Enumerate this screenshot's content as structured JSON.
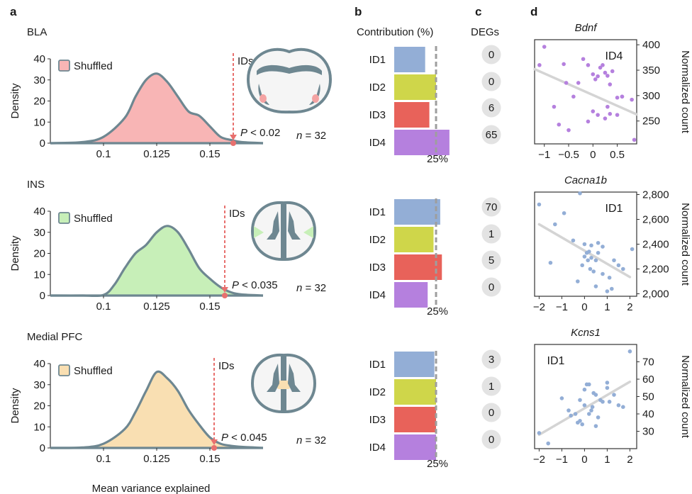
{
  "panel_letters": [
    "a",
    "b",
    "c",
    "d"
  ],
  "headers": {
    "b": "Contribution (%)",
    "c": "DEGs"
  },
  "xlabel_a": "Mean variance explained",
  "colors": {
    "outline": "#6e8791",
    "arrow": "#e8706e",
    "fills": [
      "#f8b5b5",
      "#c7efb8",
      "#f9dfb2"
    ],
    "ids": {
      "ID1": "#93aed6",
      "ID2": "#cfd64a",
      "ID3": "#e8625a",
      "ID4": "#b580de"
    },
    "scatter_line": "#d4d4d4",
    "deg_circle": "#e3e3e3"
  },
  "chart_data": [
    {
      "type": "area",
      "panel": "a",
      "region": "BLA",
      "ylabel": "Density",
      "legend": "Shuffled",
      "ylim": [
        0,
        40
      ],
      "yticks": [
        0,
        10,
        20,
        30,
        40
      ],
      "xlim": [
        0.075,
        0.175
      ],
      "xticks": [
        0.1,
        0.125,
        0.15
      ],
      "x": [
        0.075,
        0.09,
        0.1,
        0.11,
        0.115,
        0.12,
        0.125,
        0.13,
        0.135,
        0.14,
        0.145,
        0.15,
        0.155,
        0.16,
        0.165,
        0.175
      ],
      "y": [
        0,
        0.5,
        3,
        12,
        22,
        30,
        33,
        29,
        22,
        15,
        13,
        8,
        3,
        1.5,
        0.5,
        0
      ],
      "ids_value": 0.161,
      "ids_label": "IDs",
      "p_label": "P",
      "p_text": "< 0.02",
      "n_label": "n",
      "n_text": "= 32"
    },
    {
      "type": "area",
      "panel": "a",
      "region": "INS",
      "ylabel": "Density",
      "legend": "Shuffled",
      "ylim": [
        0,
        40
      ],
      "yticks": [
        0,
        10,
        20,
        30,
        40
      ],
      "xlim": [
        0.075,
        0.175
      ],
      "xticks": [
        0.1,
        0.125,
        0.15
      ],
      "x": [
        0.075,
        0.09,
        0.1,
        0.105,
        0.11,
        0.115,
        0.12,
        0.125,
        0.13,
        0.135,
        0.14,
        0.145,
        0.15,
        0.155,
        0.16,
        0.165,
        0.175
      ],
      "y": [
        0,
        0,
        0.3,
        5,
        13,
        20,
        24,
        30,
        33,
        30,
        22,
        13,
        8,
        4,
        1.5,
        0.5,
        0
      ],
      "ids_value": 0.157,
      "ids_label": "IDs",
      "p_label": "P",
      "p_text": "< 0.035",
      "n_label": "n",
      "n_text": "= 32"
    },
    {
      "type": "area",
      "panel": "a",
      "region": "Medial PFC",
      "ylabel": "Density",
      "legend": "Shuffled",
      "ylim": [
        0,
        40
      ],
      "yticks": [
        0,
        10,
        20,
        30,
        40
      ],
      "xlim": [
        0.075,
        0.175
      ],
      "xticks": [
        0.1,
        0.125,
        0.15
      ],
      "x": [
        0.075,
        0.09,
        0.1,
        0.11,
        0.115,
        0.12,
        0.125,
        0.13,
        0.135,
        0.14,
        0.145,
        0.15,
        0.155,
        0.16,
        0.165,
        0.175
      ],
      "y": [
        0,
        0.2,
        2,
        9,
        17,
        27,
        36,
        33,
        27,
        18,
        11,
        5,
        2,
        1,
        0.5,
        0
      ],
      "ids_value": 0.152,
      "ids_label": "IDs",
      "p_label": "P",
      "p_text": "< 0.045",
      "n_label": "n",
      "n_text": "= 32"
    },
    {
      "type": "bar",
      "panel": "b",
      "region": "BLA",
      "categories": [
        "ID1",
        "ID2",
        "ID3",
        "ID4"
      ],
      "values": [
        18.5,
        25,
        21,
        33
      ],
      "reference": 25,
      "reference_label": "25%"
    },
    {
      "type": "bar",
      "panel": "b",
      "region": "INS",
      "categories": [
        "ID1",
        "ID2",
        "ID3",
        "ID4"
      ],
      "values": [
        27.5,
        23.5,
        28.5,
        20
      ],
      "reference": 25,
      "reference_label": "25%"
    },
    {
      "type": "bar",
      "panel": "b",
      "region": "Medial PFC",
      "categories": [
        "ID1",
        "ID2",
        "ID3",
        "ID4"
      ],
      "values": [
        24,
        25,
        25,
        25
      ],
      "reference": 25,
      "reference_label": "25%"
    },
    {
      "type": "table",
      "panel": "c",
      "columns": [
        "BLA",
        "INS",
        "Medial PFC"
      ],
      "rows": [
        "ID1",
        "ID2",
        "ID3",
        "ID4"
      ],
      "values": [
        [
          "0",
          "0",
          "6",
          "65"
        ],
        [
          "70",
          "1",
          "5",
          "0"
        ],
        [
          "3",
          "1",
          "0",
          "0"
        ]
      ]
    },
    {
      "type": "scatter",
      "panel": "d",
      "title": "Bdnf",
      "label": "ID4",
      "ylabel": "Normalized count",
      "xlim": [
        -1.2,
        0.9
      ],
      "xticks": [
        -1,
        -0.5,
        0,
        0.5
      ],
      "xticklabels": [
        "−1",
        "−0.5",
        "0",
        "0.5"
      ],
      "ylim": [
        205,
        410
      ],
      "yticks": [
        250,
        300,
        350,
        400
      ],
      "yticklabels": [
        "250",
        "300",
        "350",
        "400"
      ],
      "fit": [
        [
          -1.2,
          352
        ],
        [
          0.9,
          263
        ]
      ],
      "x": [
        -1.0,
        -1.1,
        -0.8,
        -0.6,
        -0.55,
        -0.3,
        -0.2,
        -0.1,
        0.0,
        0.05,
        0.1,
        0.15,
        0.2,
        0.25,
        0.3,
        0.35,
        0.4,
        -0.4,
        -0.5,
        -0.7,
        0.5,
        0.6,
        0.8,
        0.85,
        -0.1,
        0.0,
        0.1,
        0.25,
        0.3,
        0.35,
        0.5,
        0.6
      ],
      "y": [
        396,
        360,
        278,
        362,
        325,
        325,
        372,
        360,
        342,
        332,
        338,
        355,
        360,
        345,
        339,
        322,
        348,
        298,
        232,
        243,
        296,
        298,
        292,
        213,
        249,
        269,
        262,
        255,
        278,
        264,
        262,
        298
      ]
    },
    {
      "type": "scatter",
      "panel": "d",
      "title": "Cacna1b",
      "label": "ID1",
      "ylabel": "Normalized count",
      "xlim": [
        -2.2,
        2.3
      ],
      "xticks": [
        -2,
        -1,
        0,
        1,
        2
      ],
      "xticklabels": [
        "−2",
        "−1",
        "0",
        "1",
        "2"
      ],
      "ylim": [
        1980,
        2820
      ],
      "yticks": [
        2000,
        2200,
        2400,
        2600,
        2800
      ],
      "yticklabels": [
        "2,000",
        "2,200",
        "2,400",
        "2,600",
        "2,800"
      ],
      "fit": [
        [
          -2.0,
          2560
        ],
        [
          2.0,
          2135
        ]
      ],
      "x": [
        -2.0,
        -1.5,
        -1.3,
        -0.9,
        -0.5,
        -0.3,
        -0.2,
        0.0,
        0.1,
        0.15,
        0.25,
        0.3,
        0.4,
        0.5,
        0.6,
        0.8,
        1.0,
        1.2,
        1.3,
        1.5,
        1.7,
        2.1,
        0.0,
        0.2,
        0.5,
        0.8,
        1.1,
        -0.1,
        0.3,
        0.6
      ],
      "y": [
        2720,
        2250,
        2560,
        2650,
        2430,
        2100,
        2810,
        2400,
        2330,
        2270,
        2200,
        2390,
        2180,
        2060,
        2330,
        2160,
        2020,
        2040,
        2270,
        2230,
        2200,
        2360,
        2300,
        2340,
        2270,
        2380,
        2130,
        2230,
        2290,
        2410
      ]
    },
    {
      "type": "scatter",
      "panel": "d",
      "title": "Kcns1",
      "label": "ID1",
      "ylabel": "Normalized count",
      "xlim": [
        -2.2,
        2.3
      ],
      "xticks": [
        -2,
        -1,
        0,
        1,
        2
      ],
      "xticklabels": [
        "−2",
        "−1",
        "0",
        "1",
        "2"
      ],
      "ylim": [
        20,
        80
      ],
      "yticks": [
        30,
        40,
        50,
        60,
        70
      ],
      "yticklabels": [
        "30",
        "40",
        "50",
        "60",
        "70"
      ],
      "fit": [
        [
          -2.0,
          28
        ],
        [
          2.0,
          58.5
        ]
      ],
      "x": [
        -2.0,
        -1.6,
        -1.0,
        -0.7,
        -0.6,
        -0.4,
        -0.3,
        -0.2,
        -0.1,
        0.0,
        0.1,
        0.2,
        0.3,
        0.35,
        0.4,
        0.5,
        0.6,
        0.8,
        1.0,
        1.1,
        1.3,
        1.5,
        1.7,
        2.0,
        0.0,
        -0.2,
        0.2,
        0.5,
        1.0,
        0.7
      ],
      "y": [
        29,
        23,
        49,
        42,
        39,
        40,
        35,
        36,
        34,
        54,
        57,
        57,
        42,
        44,
        52,
        51,
        38,
        47,
        55,
        47,
        51,
        45,
        44,
        76,
        45,
        48,
        40,
        33,
        58,
        48
      ]
    }
  ]
}
